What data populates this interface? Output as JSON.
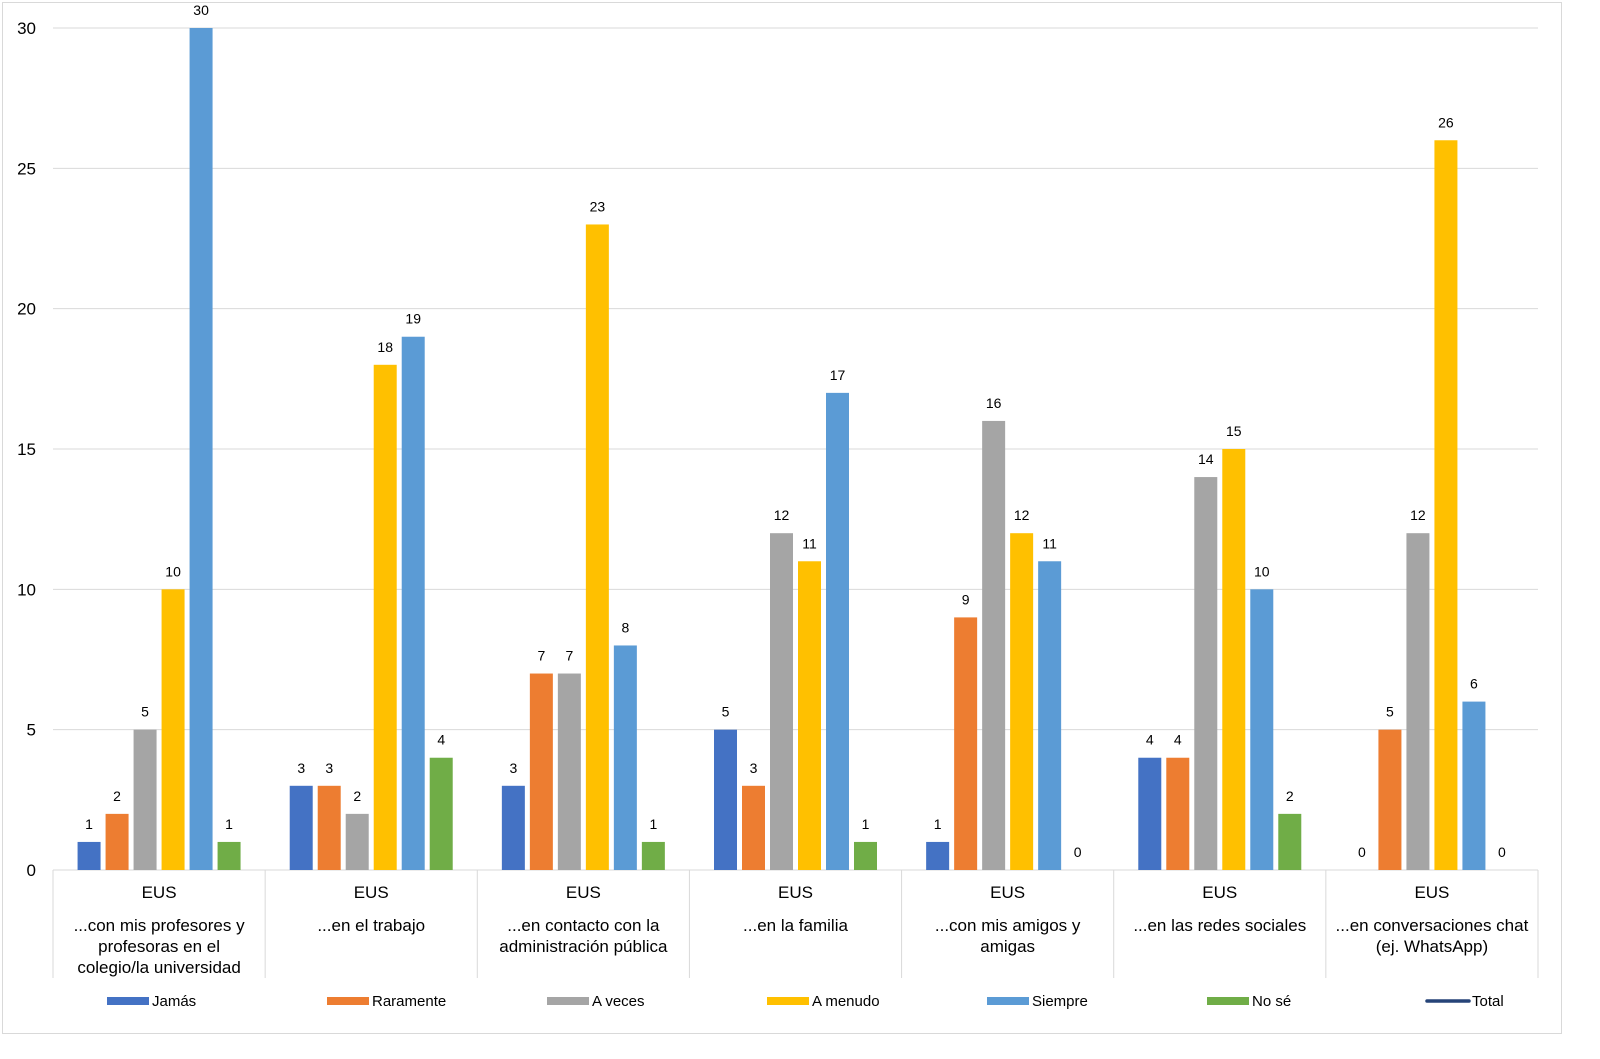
{
  "chart_data": {
    "type": "bar",
    "title": "",
    "xlabel": "",
    "ylabel": "",
    "ylim": [
      0,
      30
    ],
    "yticks": [
      0,
      5,
      10,
      15,
      20,
      25,
      30
    ],
    "grid": true,
    "legend_position": "bottom",
    "group_label": "EUS",
    "categories": [
      [
        "...con mis profesores y",
        "profesoras en el",
        "colegio/la universidad"
      ],
      [
        "...en el trabajo"
      ],
      [
        "...en contacto con la",
        "administración pública"
      ],
      [
        "...en la familia"
      ],
      [
        "...con mis amigos y",
        "amigas"
      ],
      [
        "...en las redes sociales"
      ],
      [
        "...en conversaciones chat",
        "(ej. WhatsApp)"
      ]
    ],
    "series": [
      {
        "name": "Jamás",
        "color": "#4472c4",
        "values": [
          1,
          3,
          3,
          5,
          1,
          4,
          0
        ]
      },
      {
        "name": "Raramente",
        "color": "#ed7d31",
        "values": [
          2,
          3,
          7,
          3,
          9,
          4,
          5
        ]
      },
      {
        "name": "A veces",
        "color": "#a5a5a5",
        "values": [
          5,
          2,
          7,
          12,
          16,
          14,
          12
        ]
      },
      {
        "name": "A menudo",
        "color": "#ffc000",
        "values": [
          10,
          18,
          23,
          11,
          12,
          15,
          26
        ]
      },
      {
        "name": "Siempre",
        "color": "#5b9bd5",
        "values": [
          30,
          19,
          8,
          17,
          11,
          10,
          6
        ]
      },
      {
        "name": "No sé",
        "color": "#70ad47",
        "values": [
          1,
          4,
          1,
          1,
          0,
          2,
          0
        ]
      }
    ],
    "line_series": [
      {
        "name": "Total",
        "color": "#264478",
        "values": []
      }
    ]
  }
}
